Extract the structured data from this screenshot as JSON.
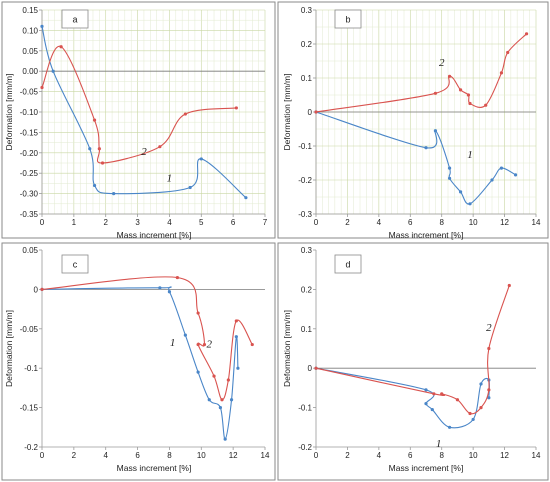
{
  "colors": {
    "series_1": "#4a86c8",
    "series_2": "#d9534f",
    "grid": "#c9d7a3"
  },
  "chart_data": [
    {
      "type": "line",
      "panel_label": "a",
      "xlabel": "Mass increment [%]",
      "ylabel": "Deformation [mm/m]",
      "xlim": [
        0,
        7
      ],
      "ylim": [
        -0.35,
        0.15
      ],
      "xticks": [
        "0",
        "1",
        "2",
        "3",
        "4",
        "5",
        "6",
        "7"
      ],
      "yticks": [
        "0.15",
        "0.10",
        "0.05",
        "0.00",
        "-0.05",
        "-0.10",
        "-0.15",
        "-0.20",
        "-0.25",
        "-0.30",
        "-0.35"
      ],
      "grid": true,
      "legend": "none",
      "series": [
        {
          "name": "1",
          "x": [
            0.0,
            0.35,
            1.5,
            1.65,
            2.25,
            4.65,
            5.0,
            6.4
          ],
          "y": [
            0.11,
            0.0,
            -0.19,
            -0.28,
            -0.3,
            -0.285,
            -0.215,
            -0.31
          ]
        },
        {
          "name": "2",
          "x": [
            0.0,
            0.6,
            1.65,
            1.8,
            1.9,
            3.7,
            4.5,
            6.1
          ],
          "y": [
            -0.04,
            0.06,
            -0.12,
            -0.19,
            -0.225,
            -0.185,
            -0.105,
            -0.09
          ]
        }
      ],
      "series_label_pos": [
        {
          "x": 4.0,
          "y": -0.27
        },
        {
          "x": 3.2,
          "y": -0.205
        }
      ]
    },
    {
      "type": "line",
      "panel_label": "b",
      "xlabel": "Mass increment [%]",
      "ylabel": "Deformation [mm/m]",
      "xlim": [
        0,
        14
      ],
      "ylim": [
        -0.3,
        0.3
      ],
      "xticks": [
        "0",
        "2",
        "4",
        "6",
        "8",
        "10",
        "12",
        "14"
      ],
      "yticks": [
        "0.3",
        "0.2",
        "0.1",
        "0",
        "-0.1",
        "-0.2",
        "-0.3"
      ],
      "grid": true,
      "legend": "none",
      "series": [
        {
          "name": "1",
          "x": [
            0.0,
            7.0,
            7.6,
            8.5,
            8.5,
            9.2,
            9.8,
            11.2,
            11.8,
            12.7
          ],
          "y": [
            0.0,
            -0.105,
            -0.055,
            -0.165,
            -0.195,
            -0.235,
            -0.27,
            -0.2,
            -0.165,
            -0.185
          ]
        },
        {
          "name": "2",
          "x": [
            0.0,
            7.6,
            8.5,
            9.2,
            9.7,
            9.8,
            10.8,
            11.8,
            12.2,
            13.4
          ],
          "y": [
            0.0,
            0.055,
            0.105,
            0.065,
            0.05,
            0.025,
            0.02,
            0.115,
            0.175,
            0.23
          ]
        }
      ],
      "series_label_pos": [
        {
          "x": 9.8,
          "y": -0.135
        },
        {
          "x": 8.0,
          "y": 0.135
        }
      ]
    },
    {
      "type": "line",
      "panel_label": "c",
      "xlabel": "Mass increment [%]",
      "ylabel": "Deformation [mm/m]",
      "xlim": [
        0,
        14
      ],
      "ylim": [
        -0.2,
        0.05
      ],
      "xticks": [
        "0",
        "2",
        "4",
        "6",
        "8",
        "10",
        "12",
        "14"
      ],
      "yticks": [
        "0.05",
        "0",
        "-0.05",
        "-0.1",
        "-0.15",
        "-0.2"
      ],
      "grid": false,
      "legend": "none",
      "series": [
        {
          "name": "1",
          "x": [
            0.0,
            7.4,
            8.0,
            9.0,
            9.8,
            10.5,
            11.2,
            11.5,
            11.9,
            12.2,
            12.3
          ],
          "y": [
            0.0,
            0.002,
            -0.003,
            -0.058,
            -0.105,
            -0.14,
            -0.15,
            -0.19,
            -0.14,
            -0.06,
            -0.1
          ]
        },
        {
          "name": "2",
          "x": [
            0.0,
            8.5,
            9.8,
            10.2,
            9.8,
            10.8,
            11.3,
            11.7,
            12.2,
            13.2
          ],
          "y": [
            0.0,
            0.015,
            -0.03,
            -0.07,
            -0.07,
            -0.11,
            -0.14,
            -0.115,
            -0.04,
            -0.07
          ]
        }
      ],
      "series_label_pos": [
        {
          "x": 8.2,
          "y": -0.072
        },
        {
          "x": 10.5,
          "y": -0.074
        }
      ]
    },
    {
      "type": "line",
      "panel_label": "d",
      "xlabel": "Mass increment [%]",
      "ylabel": "Deformation [mm/m]",
      "xlim": [
        0,
        14
      ],
      "ylim": [
        -0.2,
        0.3
      ],
      "xticks": [
        "0",
        "2",
        "4",
        "6",
        "8",
        "10",
        "12",
        "14"
      ],
      "yticks": [
        "0.3",
        "0.2",
        "0.1",
        "0",
        "-0.1",
        "-0.2"
      ],
      "grid": false,
      "legend": "none",
      "series": [
        {
          "name": "1",
          "x": [
            0.0,
            7.0,
            7.0,
            7.4,
            8.5,
            10.0,
            10.5,
            11.0,
            11.0
          ],
          "y": [
            0.0,
            -0.055,
            -0.09,
            -0.105,
            -0.15,
            -0.13,
            -0.04,
            -0.03,
            -0.075
          ]
        },
        {
          "name": "2",
          "x": [
            0.0,
            7.5,
            8.0,
            9.0,
            9.8,
            10.5,
            11.0,
            11.0,
            12.3
          ],
          "y": [
            0.0,
            -0.065,
            -0.065,
            -0.08,
            -0.115,
            -0.1,
            -0.055,
            0.05,
            0.21
          ]
        }
      ],
      "series_label_pos": [
        {
          "x": 7.8,
          "y": -0.2
        },
        {
          "x": 11.0,
          "y": 0.095
        }
      ]
    }
  ]
}
